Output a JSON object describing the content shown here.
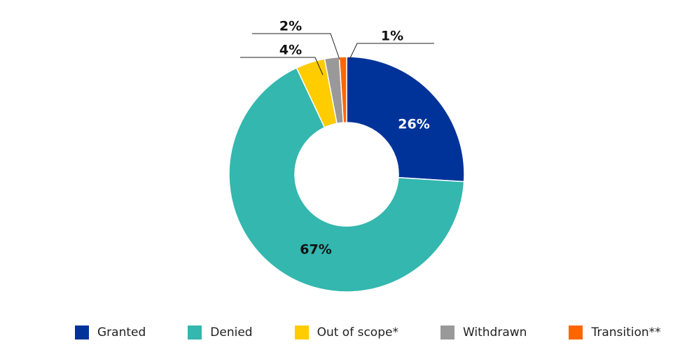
{
  "chart_data": {
    "type": "donut",
    "title": "",
    "series": [
      {
        "name": "Granted",
        "value": 26,
        "label": "26%",
        "color": "#003399"
      },
      {
        "name": "Denied",
        "value": 67,
        "label": "67%",
        "color": "#33b7ae"
      },
      {
        "name": "Out of scope*",
        "value": 4,
        "label": "4%",
        "color": "#ffcc00"
      },
      {
        "name": "Withdrawn",
        "value": 2,
        "label": "2%",
        "color": "#999999"
      },
      {
        "name": "Transition**",
        "value": 1,
        "label": "1%",
        "color": "#ff6600"
      }
    ],
    "legend_position": "bottom"
  }
}
